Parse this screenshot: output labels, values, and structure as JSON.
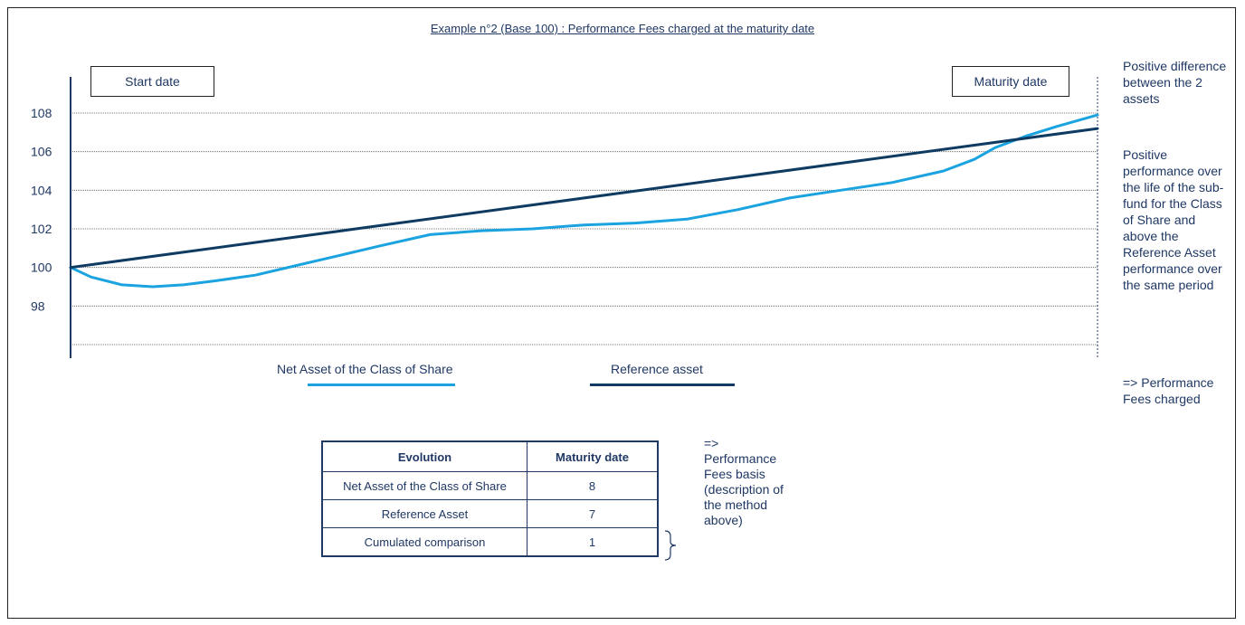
{
  "chart_data": {
    "type": "line",
    "title": "Example  n°2 (Base 100) : Performance Fees charged at the maturity date",
    "y_ticks": [
      98,
      100,
      102,
      104,
      106,
      108
    ],
    "ylim": [
      96,
      109
    ],
    "xlim": [
      0,
      100
    ],
    "grid": true,
    "series": [
      {
        "name": "Net Asset of the Class of Share",
        "color": "#1ba3e0",
        "x": [
          0,
          2,
          5,
          8,
          11,
          14,
          18,
          22,
          26,
          30,
          35,
          40,
          45,
          50,
          55,
          60,
          65,
          70,
          75,
          80,
          85,
          88,
          90,
          93,
          96,
          100
        ],
        "y": [
          100,
          99.5,
          99.1,
          99.0,
          99.1,
          99.3,
          99.6,
          100.1,
          100.6,
          101.1,
          101.7,
          101.9,
          102.0,
          102.2,
          102.3,
          102.5,
          103.0,
          103.6,
          104.0,
          104.4,
          105.0,
          105.6,
          106.2,
          106.8,
          107.3,
          107.9
        ]
      },
      {
        "name": "Reference asset",
        "color": "#0f3b63",
        "x": [
          0,
          100
        ],
        "y": [
          100,
          107.2
        ]
      }
    ]
  },
  "labels": {
    "start_date": "Start date",
    "maturity_date": "Maturity date"
  },
  "notes": {
    "difference": "Positive difference between the 2 assets",
    "performance": "Positive performance over the life of the sub-fund for the Class of Share and above the Reference Asset performance over the same period",
    "fees_charged": "=> Performance Fees charged",
    "fees_basis": "=> Performance Fees basis (description of the method above)"
  },
  "legend": {
    "nav": "Net Asset of the Class of Share",
    "ref": "Reference asset"
  },
  "table": {
    "headers": [
      "Evolution",
      "Maturity date"
    ],
    "rows": [
      [
        "Net Asset of the Class of Share",
        "8"
      ],
      [
        "Reference Asset",
        "7"
      ],
      [
        "Cumulated comparison",
        "1"
      ]
    ]
  }
}
